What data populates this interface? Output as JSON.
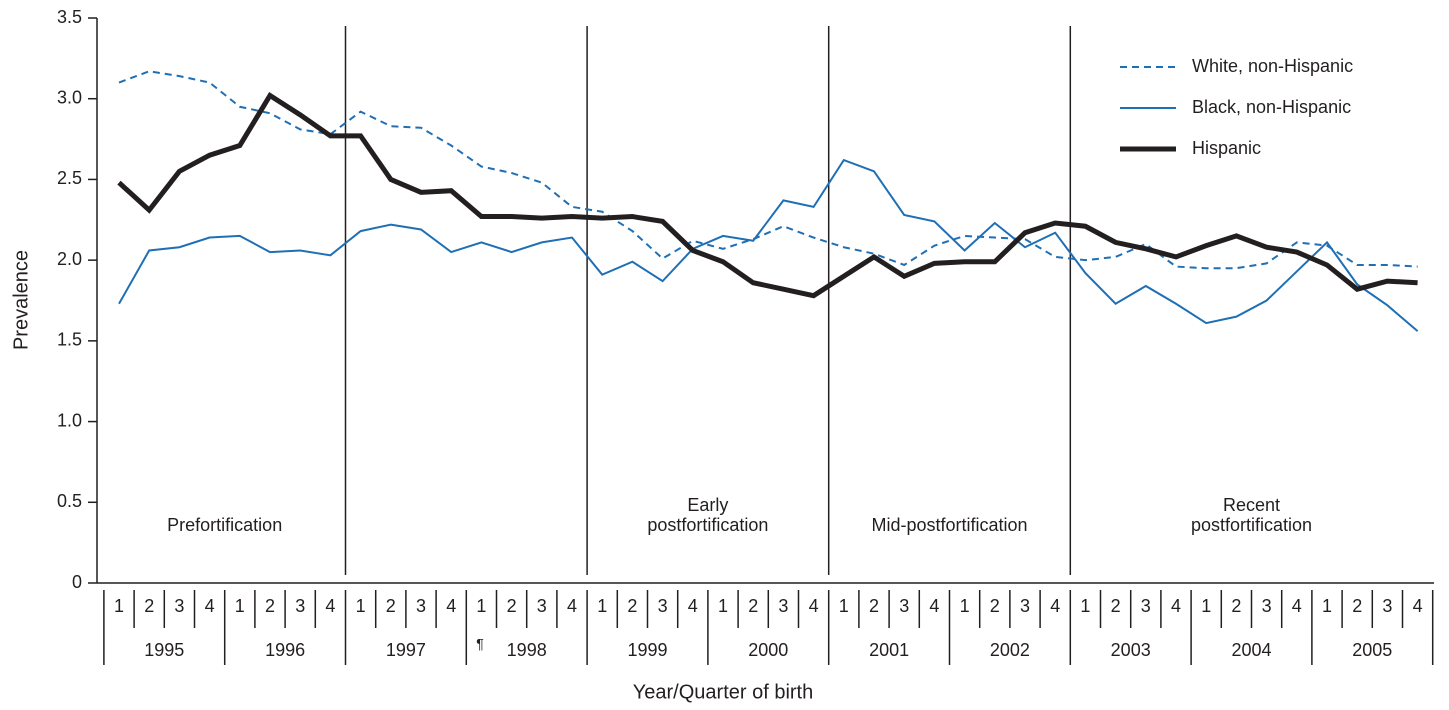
{
  "chart_data": {
    "type": "line",
    "y_label": "Prevalence",
    "x_label": "Year/Quarter of birth",
    "categories": [
      "1",
      "2",
      "3",
      "4",
      "1",
      "2",
      "3",
      "4",
      "1",
      "2",
      "3",
      "4",
      "1",
      "2",
      "3",
      "4",
      "1",
      "2",
      "3",
      "4",
      "1",
      "2",
      "3",
      "4",
      "1",
      "2",
      "3",
      "4",
      "1",
      "2",
      "3",
      "4",
      "1",
      "2",
      "3",
      "4",
      "1",
      "2",
      "3",
      "4",
      "1",
      "2",
      "3",
      "4"
    ],
    "years": [
      "1995",
      "1996",
      "1997",
      "1998",
      "1999",
      "2000",
      "2001",
      "2002",
      "2003",
      "2004",
      "2005"
    ],
    "footnote_mark": "¶",
    "periods": [
      [
        "Prefortification"
      ],
      null,
      [
        "Early",
        "postfortification"
      ],
      [
        "Mid-postfortification"
      ],
      [
        "Recent",
        "postfortification"
      ]
    ],
    "ylim": [
      0,
      3.5
    ],
    "yticks": [
      0,
      0.5,
      {
        "value": 1,
        "label": "1.0"
      },
      1.5,
      {
        "value": 2,
        "label": "2.0"
      },
      2.5,
      {
        "value": 3,
        "label": "3.0"
      },
      3.5
    ],
    "grid": false,
    "legend": "top-right",
    "series": [
      {
        "name": "White, non-Hispanic",
        "color": "#1f6fb5",
        "style": "dashed",
        "values": [
          3.1,
          3.17,
          3.14,
          3.1,
          2.95,
          2.91,
          2.81,
          2.78,
          2.92,
          2.83,
          2.82,
          2.71,
          2.58,
          2.54,
          2.48,
          2.33,
          2.3,
          2.18,
          2.01,
          2.12,
          2.07,
          2.13,
          2.21,
          2.14,
          2.08,
          2.04,
          1.97,
          2.09,
          2.15,
          2.14,
          2.13,
          2.02,
          2.0,
          2.02,
          2.1,
          1.96,
          1.95,
          1.95,
          1.98,
          2.11,
          2.09,
          1.97,
          1.97,
          1.96
        ]
      },
      {
        "name": "Black, non-Hispanic",
        "color": "#1f6fb5",
        "style": "solid",
        "values": [
          1.73,
          2.06,
          2.08,
          2.14,
          2.15,
          2.05,
          2.06,
          2.03,
          2.18,
          2.22,
          2.19,
          2.05,
          2.11,
          2.05,
          2.11,
          2.14,
          1.91,
          1.99,
          1.87,
          2.07,
          2.15,
          2.12,
          2.37,
          2.33,
          2.62,
          2.55,
          2.28,
          2.24,
          2.06,
          2.23,
          2.08,
          2.17,
          1.92,
          1.73,
          1.84,
          1.73,
          1.61,
          1.65,
          1.75,
          1.93,
          2.11,
          1.85,
          1.72,
          1.56
        ]
      },
      {
        "name": "Hispanic",
        "color": "#231f20",
        "style": "thick",
        "values": [
          2.48,
          2.31,
          2.55,
          2.65,
          2.71,
          3.02,
          2.9,
          2.77,
          2.77,
          2.5,
          2.42,
          2.43,
          2.27,
          2.27,
          2.26,
          2.27,
          2.26,
          2.27,
          2.24,
          2.06,
          1.99,
          1.86,
          1.82,
          1.78,
          1.9,
          2.02,
          1.9,
          1.98,
          1.99,
          1.99,
          2.17,
          2.23,
          2.21,
          2.11,
          2.07,
          2.02,
          2.09,
          2.15,
          2.08,
          2.05,
          1.97,
          1.82,
          1.87,
          1.86
        ]
      }
    ]
  }
}
